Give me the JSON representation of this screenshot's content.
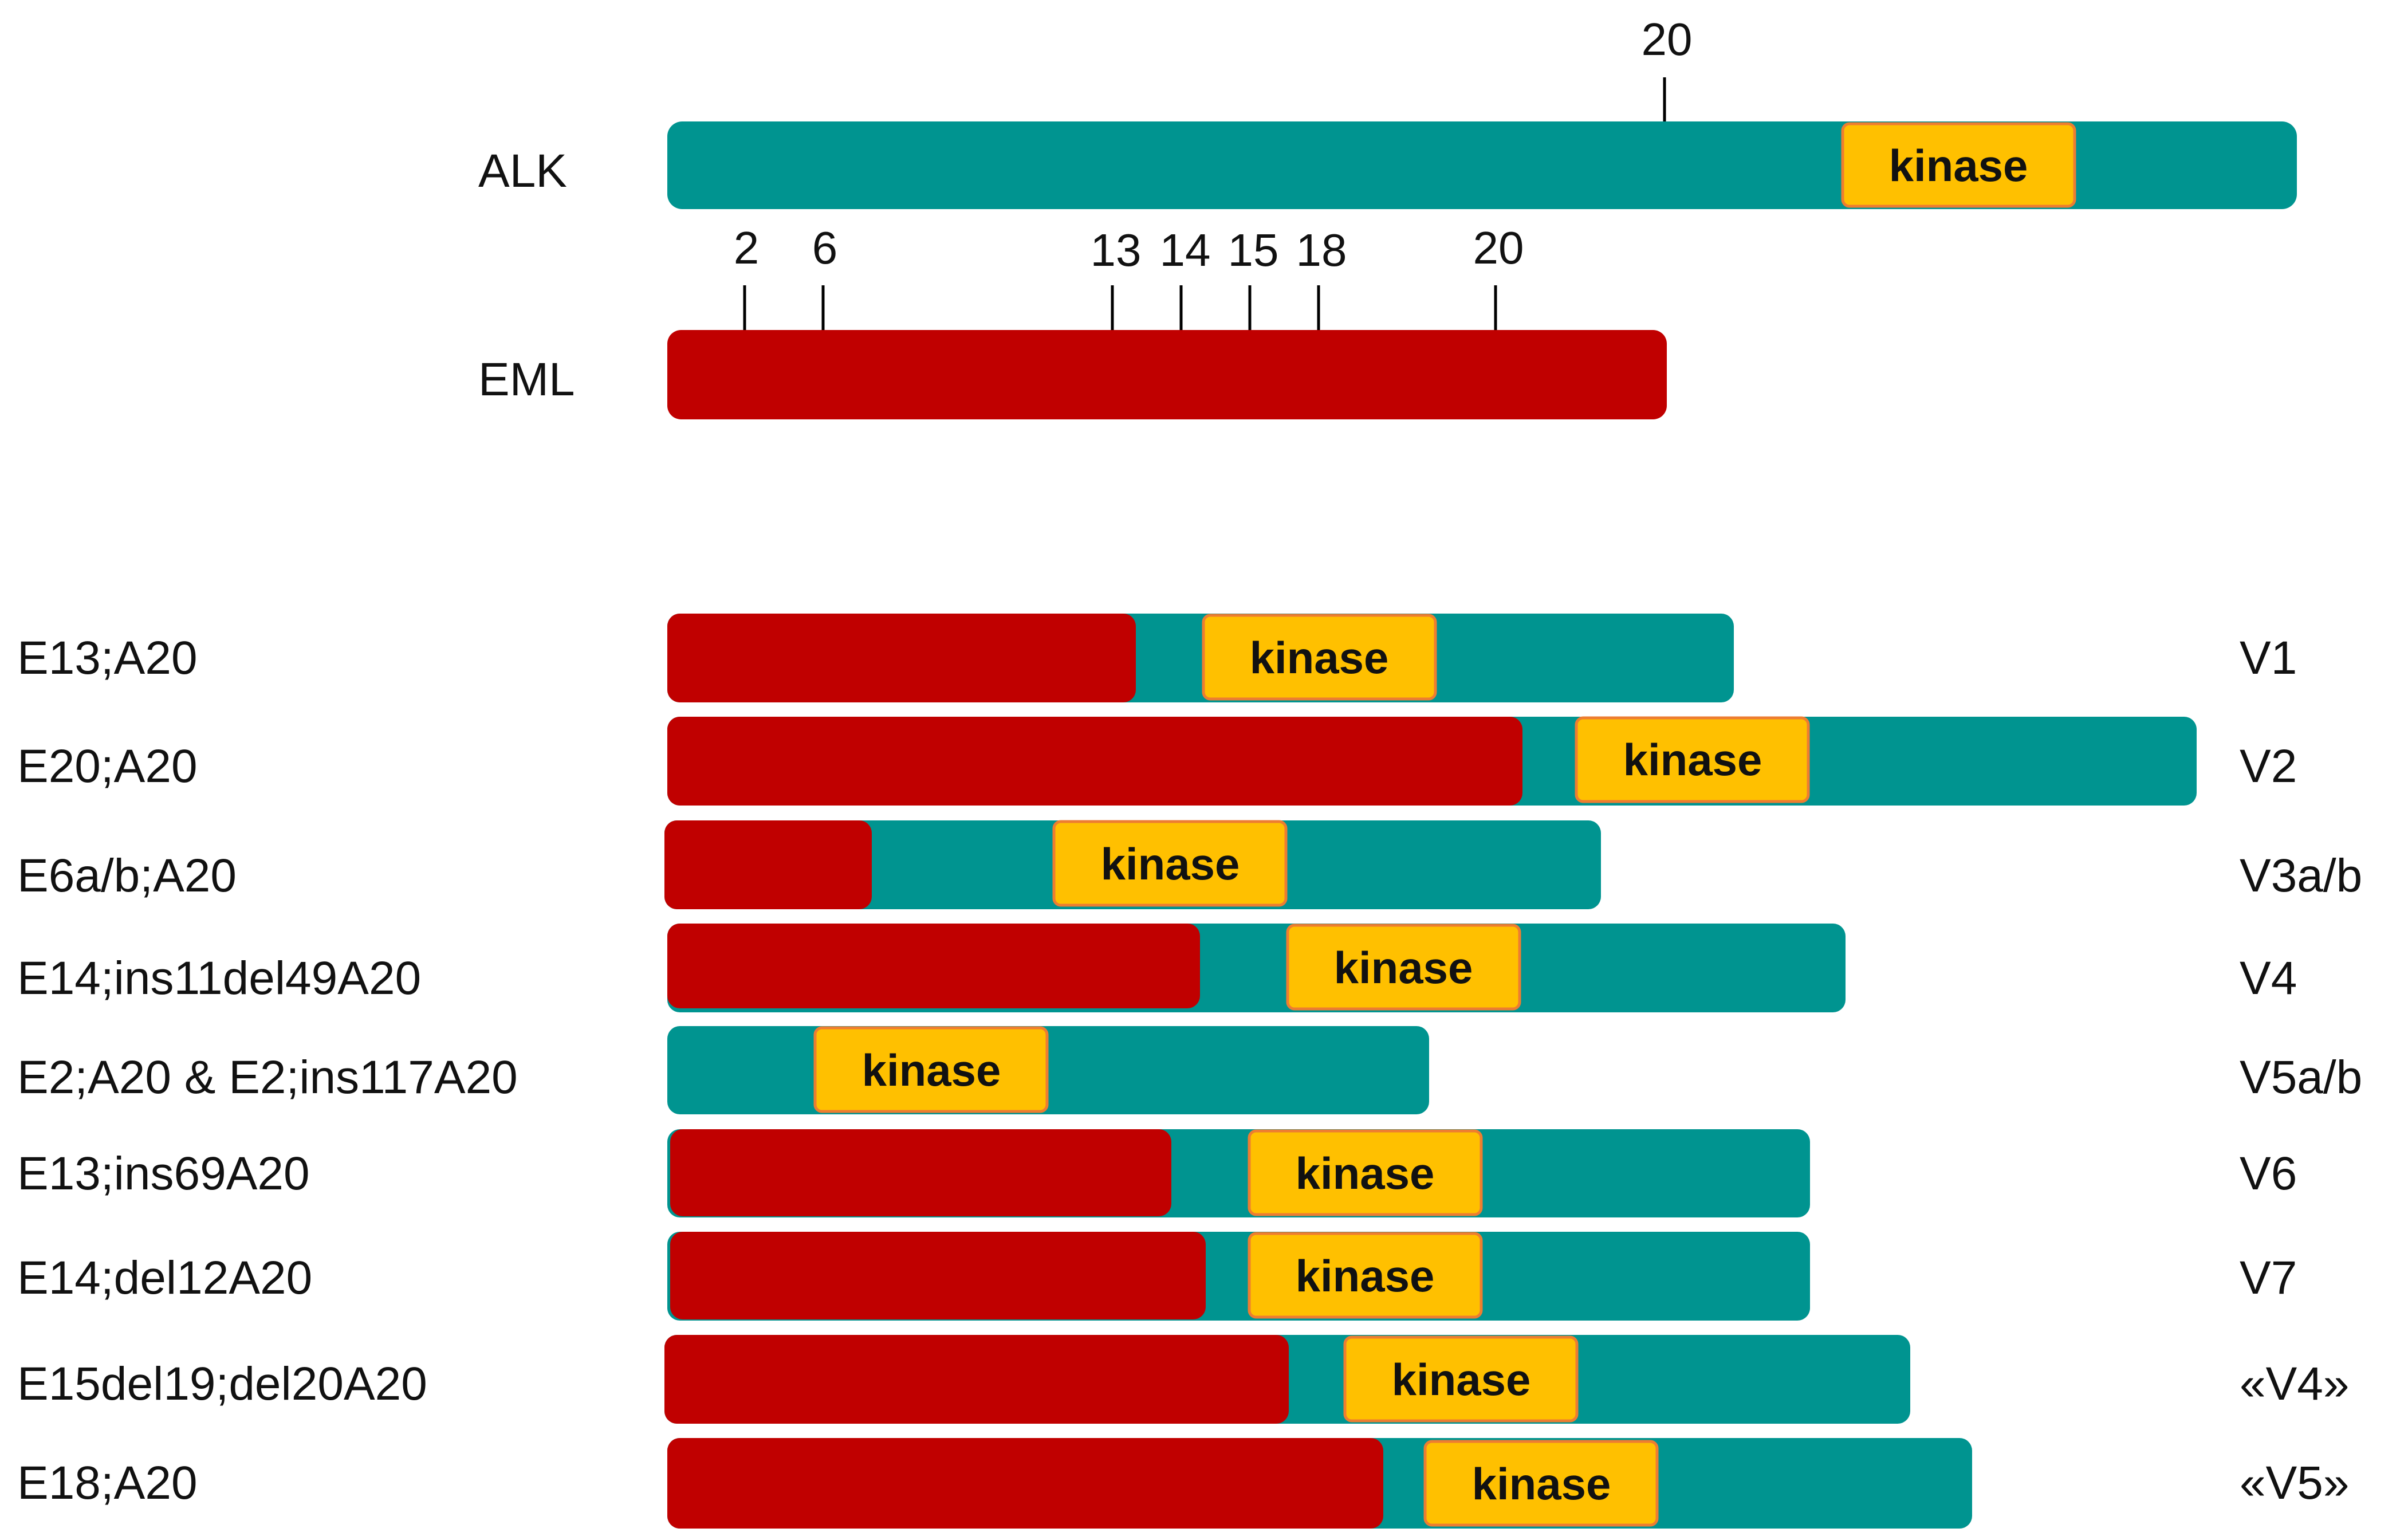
{
  "colors": {
    "alk": "#009490",
    "eml": "#C00000",
    "kinase_fill": "#FFC000",
    "kinase_border": "#ED7D31"
  },
  "genes": {
    "alk": {
      "name": "ALK",
      "kinase_label": "kinase",
      "exon_ticks": [
        "20"
      ]
    },
    "eml": {
      "name": "EML",
      "exon_ticks": [
        "2",
        "6",
        "13",
        "14",
        "15",
        "18",
        "20"
      ]
    }
  },
  "variants": [
    {
      "fusion": "E13;A20",
      "variant": "V1",
      "kinase_label": "kinase"
    },
    {
      "fusion": "E20;A20",
      "variant": "V2",
      "kinase_label": "kinase"
    },
    {
      "fusion": "E6a/b;A20",
      "variant": "V3a/b",
      "kinase_label": "kinase"
    },
    {
      "fusion": "E14;ins11del49A20",
      "variant": "V4",
      "kinase_label": "kinase"
    },
    {
      "fusion": "E2;A20 & E2;ins117A20",
      "variant": "V5a/b",
      "kinase_label": "kinase"
    },
    {
      "fusion": "E13;ins69A20",
      "variant": "V6",
      "kinase_label": "kinase"
    },
    {
      "fusion": "E14;del12A20",
      "variant": "V7",
      "kinase_label": "kinase"
    },
    {
      "fusion": "E15del19;del20A20",
      "variant": "«V4»",
      "kinase_label": "kinase"
    },
    {
      "fusion": "E18;A20",
      "variant": "«V5»",
      "kinase_label": "kinase"
    }
  ]
}
